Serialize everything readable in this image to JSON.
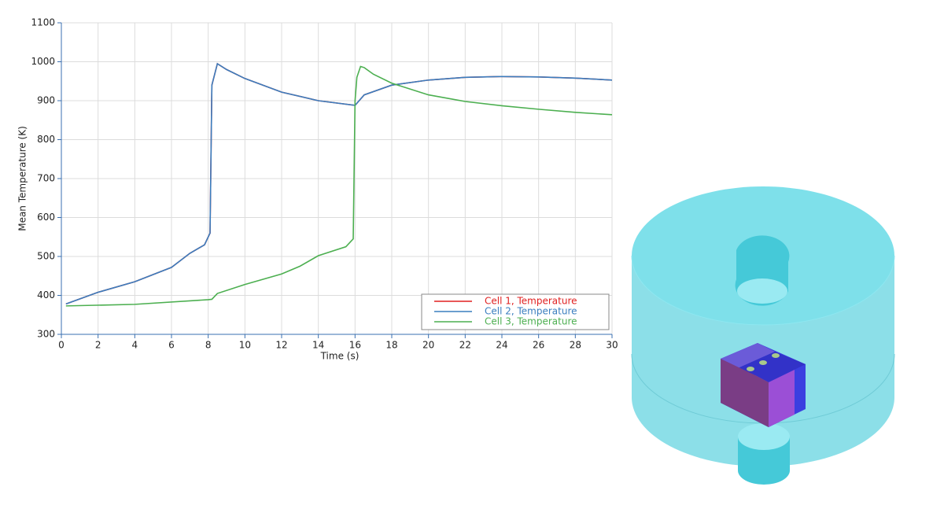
{
  "chart_data": {
    "type": "line",
    "x_label": "Time (s)",
    "y_label": "Mean Temperature (K)",
    "xlim": [
      0,
      30
    ],
    "ylim": [
      300,
      1100
    ],
    "xticks": [
      0,
      2,
      4,
      6,
      8,
      10,
      12,
      14,
      16,
      18,
      20,
      22,
      24,
      26,
      28,
      30
    ],
    "yticks": [
      300,
      400,
      500,
      600,
      700,
      800,
      900,
      1000,
      1100
    ],
    "grid": true,
    "legend": "lower right",
    "series": [
      {
        "name": "Cell 1, Temperature",
        "color": "#e02020",
        "x": [
          0.25,
          2,
          4,
          6,
          7,
          7.8,
          8.1,
          8.2,
          8.5,
          9,
          10,
          12,
          14,
          16,
          16.5,
          18,
          20,
          22,
          24,
          26,
          28,
          30
        ],
        "values": [
          378,
          408,
          435,
          472,
          508,
          530,
          560,
          940,
          995,
          980,
          957,
          922,
          900,
          888,
          915,
          940,
          953,
          960,
          962,
          961,
          958,
          953
        ]
      },
      {
        "name": "Cell 2, Temperature",
        "color": "#3a7ebf",
        "x": [
          0.25,
          2,
          4,
          6,
          7,
          7.8,
          8.1,
          8.2,
          8.5,
          9,
          10,
          12,
          14,
          16,
          16.5,
          18,
          20,
          22,
          24,
          26,
          28,
          30
        ],
        "values": [
          378,
          408,
          435,
          472,
          508,
          530,
          560,
          940,
          995,
          980,
          957,
          922,
          900,
          888,
          915,
          940,
          953,
          960,
          962,
          961,
          958,
          953
        ]
      },
      {
        "name": "Cell 3, Temperature",
        "color": "#4caf50",
        "x": [
          0.25,
          4,
          8,
          8.2,
          8.5,
          10,
          12,
          13,
          14,
          15.5,
          15.9,
          16.0,
          16.1,
          16.3,
          16.5,
          17,
          18,
          20,
          22,
          24,
          26,
          28,
          30
        ],
        "values": [
          373,
          377,
          389,
          390,
          405,
          428,
          455,
          475,
          502,
          525,
          545,
          900,
          960,
          988,
          985,
          968,
          945,
          915,
          898,
          887,
          878,
          870,
          864
        ]
      }
    ]
  }
}
